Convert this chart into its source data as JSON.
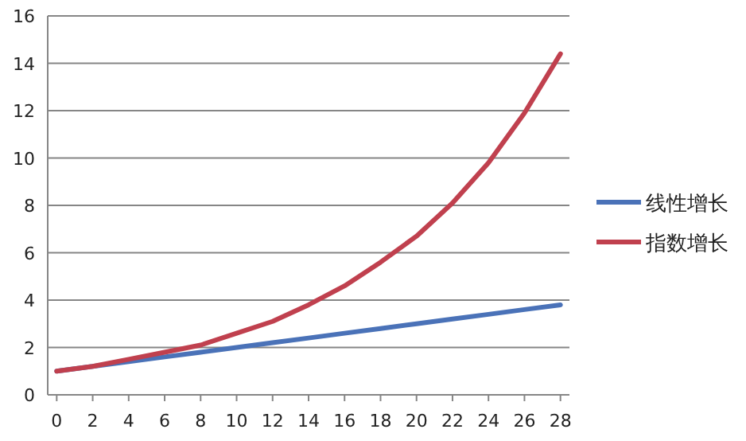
{
  "chart_data": {
    "type": "line",
    "x": [
      0,
      2,
      4,
      6,
      8,
      10,
      12,
      14,
      16,
      18,
      20,
      22,
      24,
      26,
      28
    ],
    "series": [
      {
        "name": "线性增长",
        "color": "#4a72b8",
        "values": [
          1.0,
          1.2,
          1.4,
          1.6,
          1.8,
          2.0,
          2.2,
          2.4,
          2.6,
          2.8,
          3.0,
          3.2,
          3.4,
          3.6,
          3.8
        ]
      },
      {
        "name": "指数增长",
        "color": "#c0404e",
        "values": [
          1.0,
          1.2,
          1.5,
          1.8,
          2.1,
          2.6,
          3.1,
          3.8,
          4.6,
          5.6,
          6.7,
          8.1,
          9.8,
          11.9,
          14.4
        ]
      }
    ],
    "xlim": [
      -0.5,
      28.5
    ],
    "xticks": [
      0,
      2,
      4,
      6,
      8,
      10,
      12,
      14,
      16,
      18,
      20,
      22,
      24,
      26,
      28
    ],
    "ylim": [
      0,
      16
    ],
    "yticks": [
      0,
      2,
      4,
      6,
      8,
      10,
      12,
      14,
      16
    ],
    "grid": "y",
    "legend": "right",
    "marker": "none",
    "line_style": "solid"
  }
}
